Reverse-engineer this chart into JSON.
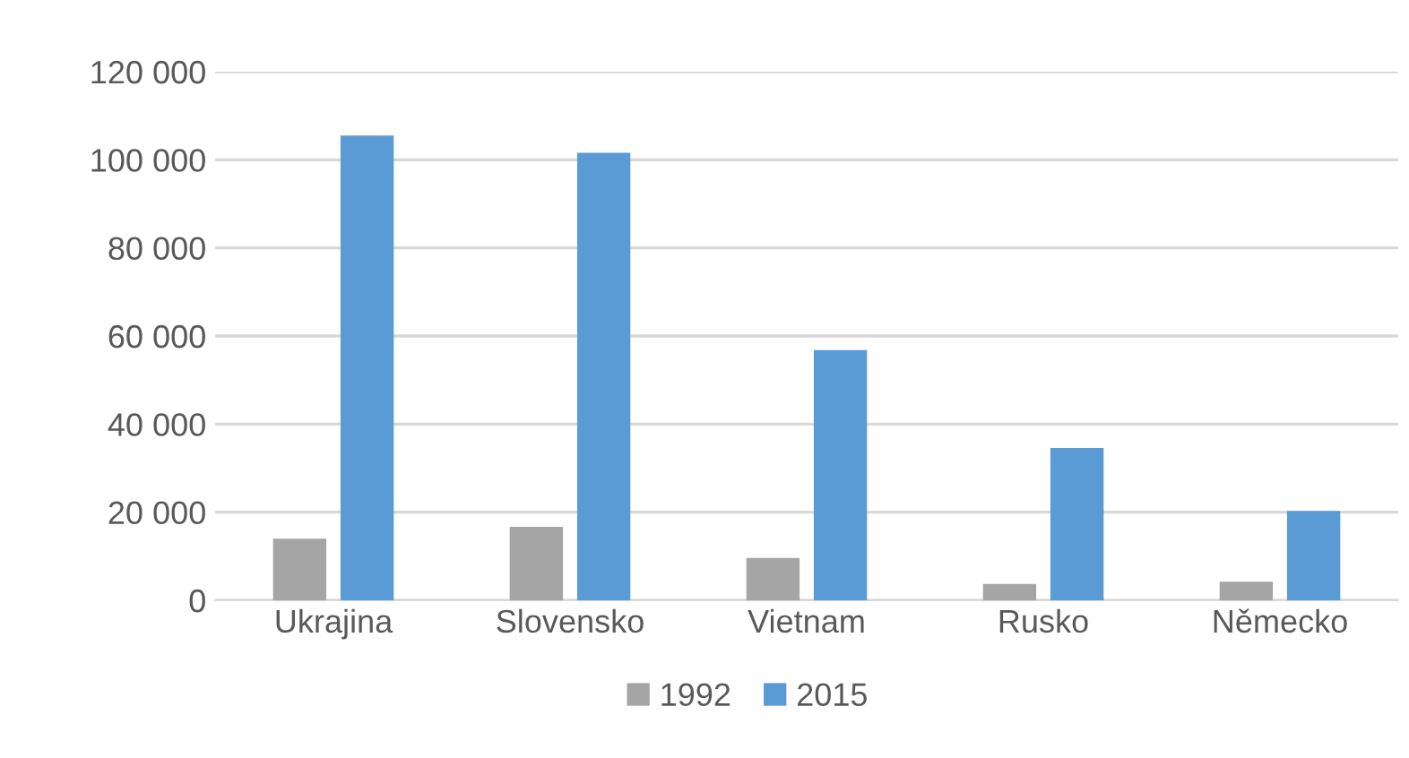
{
  "chart_data": {
    "type": "bar",
    "categories": [
      "Ukrajina",
      "Slovensko",
      "Vietnam",
      "Rusko",
      "Německo"
    ],
    "series": [
      {
        "name": "1992",
        "color": "#a5a5a5",
        "values": [
          14000,
          16700,
          9600,
          3700,
          4200
        ]
      },
      {
        "name": "2015",
        "color": "#5b9bd5",
        "values": [
          105500,
          101600,
          56800,
          34600,
          20300
        ]
      }
    ],
    "ylim": [
      0,
      120000
    ],
    "yticks": [
      {
        "value": 0,
        "label": "0"
      },
      {
        "value": 20000,
        "label": "20 000"
      },
      {
        "value": 40000,
        "label": "40 000"
      },
      {
        "value": 60000,
        "label": "60 000"
      },
      {
        "value": 80000,
        "label": "80 000"
      },
      {
        "value": 100000,
        "label": "100 000"
      },
      {
        "value": 120000,
        "label": "120 000"
      }
    ],
    "grid": "y",
    "legend": "bottom"
  }
}
